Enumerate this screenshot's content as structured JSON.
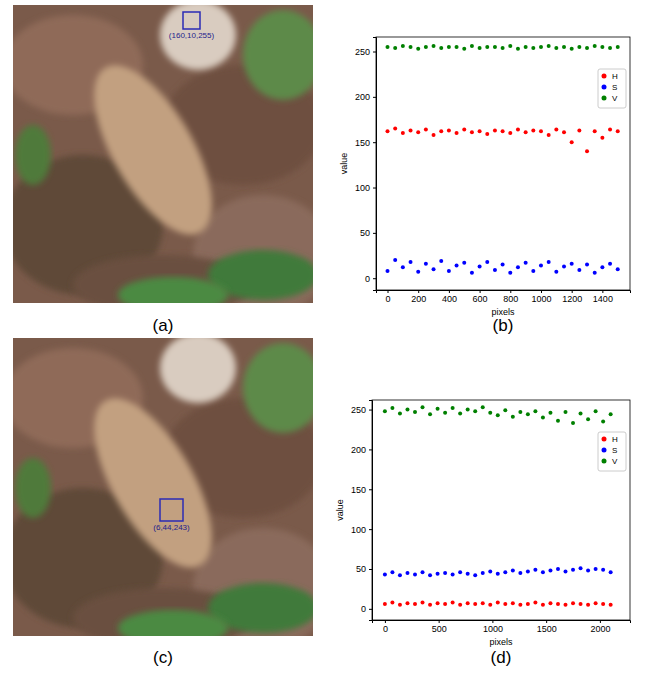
{
  "chart_data": [
    {
      "type": "scatter",
      "caption": "(b)",
      "x_label": "pixels",
      "y_label": "value",
      "x": [
        0,
        50,
        100,
        150,
        200,
        250,
        300,
        350,
        400,
        450,
        500,
        550,
        600,
        650,
        700,
        750,
        800,
        850,
        900,
        950,
        1000,
        1050,
        1100,
        1150,
        1200,
        1250,
        1300,
        1350,
        1400,
        1450,
        1500
      ],
      "series": [
        {
          "name": "H",
          "color": "#ff0000",
          "values": [
            162,
            165,
            160,
            163,
            161,
            164,
            158,
            162,
            163,
            160,
            164,
            161,
            162,
            159,
            163,
            162,
            160,
            164,
            161,
            163,
            162,
            158,
            164,
            161,
            150,
            163,
            140,
            162,
            155,
            164,
            162
          ]
        },
        {
          "name": "S",
          "color": "#0000ff",
          "values": [
            8,
            20,
            12,
            18,
            7,
            16,
            10,
            19,
            8,
            14,
            17,
            6,
            13,
            18,
            9,
            15,
            6,
            12,
            17,
            8,
            14,
            18,
            7,
            13,
            16,
            9,
            15,
            6,
            12,
            16,
            10
          ]
        },
        {
          "name": "V",
          "color": "#008000",
          "values": [
            255,
            254,
            256,
            255,
            253,
            255,
            256,
            254,
            255,
            255,
            253,
            256,
            254,
            255,
            255,
            254,
            256,
            253,
            255,
            254,
            255,
            256,
            254,
            255,
            253,
            255,
            254,
            256,
            255,
            254,
            255
          ]
        }
      ],
      "marker": "o",
      "xlim": [
        -75,
        1580
      ],
      "xticks": [
        0,
        200,
        400,
        600,
        800,
        1000,
        1200,
        1400
      ],
      "ylim": [
        -13,
        266
      ],
      "yticks": [
        0,
        50,
        100,
        150,
        200,
        250
      ],
      "legend": "upper right"
    },
    {
      "type": "scatter",
      "caption": "(d)",
      "x_label": "pixels",
      "y_label": "value",
      "x": [
        0,
        70,
        140,
        210,
        280,
        350,
        420,
        490,
        560,
        630,
        700,
        770,
        840,
        910,
        980,
        1050,
        1120,
        1190,
        1260,
        1330,
        1400,
        1470,
        1540,
        1610,
        1680,
        1750,
        1820,
        1890,
        1960,
        2030,
        2100
      ],
      "series": [
        {
          "name": "H",
          "color": "#ff0000",
          "values": [
            6,
            8,
            5,
            7,
            6,
            8,
            5,
            7,
            6,
            8,
            5,
            7,
            6,
            7,
            5,
            8,
            6,
            7,
            5,
            6,
            8,
            5,
            7,
            6,
            5,
            7,
            6,
            5,
            7,
            6,
            5
          ]
        },
        {
          "name": "S",
          "color": "#0000ff",
          "values": [
            43,
            46,
            42,
            45,
            43,
            46,
            42,
            44,
            45,
            43,
            46,
            44,
            42,
            45,
            47,
            44,
            46,
            48,
            45,
            47,
            49,
            46,
            48,
            50,
            47,
            49,
            51,
            48,
            50,
            49,
            46
          ]
        },
        {
          "name": "V",
          "color": "#008000",
          "values": [
            248,
            252,
            245,
            250,
            247,
            253,
            244,
            251,
            246,
            252,
            245,
            250,
            248,
            253,
            246,
            243,
            249,
            241,
            247,
            244,
            248,
            240,
            246,
            236,
            247,
            233,
            245,
            238,
            248,
            235,
            244
          ]
        }
      ],
      "marker": "o",
      "xlim": [
        -120,
        2280
      ],
      "xticks": [
        0,
        500,
        1000,
        1500,
        2000
      ],
      "ylim": [
        -14,
        262
      ],
      "yticks": [
        0,
        50,
        100,
        150,
        200,
        250
      ],
      "legend": "upper right"
    }
  ],
  "images": [
    {
      "caption": "(a)",
      "box_label": "(160,10,255)"
    },
    {
      "caption": "(c)",
      "box_label": "(6,44,243)"
    }
  ]
}
